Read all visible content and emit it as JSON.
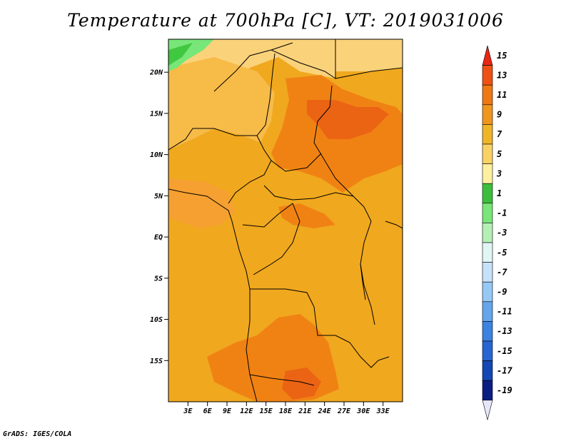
{
  "title": "Temperature at 700hPa [C], VT: 2019031006",
  "credit": "GrADS: IGES/COLA",
  "map": {
    "lon_range": [
      0,
      36
    ],
    "lat_range": [
      -20,
      24
    ],
    "lat_ticks": [
      {
        "value": 20,
        "label": "20N"
      },
      {
        "value": 15,
        "label": "15N"
      },
      {
        "value": 10,
        "label": "10N"
      },
      {
        "value": 5,
        "label": "5N"
      },
      {
        "value": 0,
        "label": "EQ"
      },
      {
        "value": -5,
        "label": "5S"
      },
      {
        "value": -10,
        "label": "10S"
      },
      {
        "value": -15,
        "label": "15S"
      }
    ],
    "lon_ticks": [
      {
        "value": 3,
        "label": "3E"
      },
      {
        "value": 6,
        "label": "6E"
      },
      {
        "value": 9,
        "label": "9E"
      },
      {
        "value": 12,
        "label": "12E"
      },
      {
        "value": 15,
        "label": "15E"
      },
      {
        "value": 18,
        "label": "18E"
      },
      {
        "value": 21,
        "label": "21E"
      },
      {
        "value": 24,
        "label": "24E"
      },
      {
        "value": 27,
        "label": "27E"
      },
      {
        "value": 30,
        "label": "30E"
      },
      {
        "value": 33,
        "label": "33E"
      }
    ],
    "field_colors": {
      "base": "#f0a81e",
      "medium": "#f5a030",
      "light": "#f7bb48",
      "pale": "#fad27a",
      "warm": "#f08214",
      "hot": "#eb6414",
      "green": "#78e678",
      "darkgreen": "#40c840"
    }
  },
  "colorbar": {
    "labels": [
      "15",
      "13",
      "11",
      "9",
      "7",
      "5",
      "3",
      "1",
      "-1",
      "-3",
      "-5",
      "-7",
      "-9",
      "-11",
      "-13",
      "-15",
      "-17",
      "-19"
    ],
    "colors": [
      "#e62814",
      "#f05014",
      "#f07814",
      "#f0961e",
      "#f0b428",
      "#fad264",
      "#fff0a0",
      "#3cbe3c",
      "#78e678",
      "#b4f0b4",
      "#e1f5f5",
      "#c8e1fa",
      "#96c8f5",
      "#64a5eb",
      "#3c82e1",
      "#2864d2",
      "#1446b4",
      "#0a1e82",
      "#e6e6fa"
    ]
  }
}
